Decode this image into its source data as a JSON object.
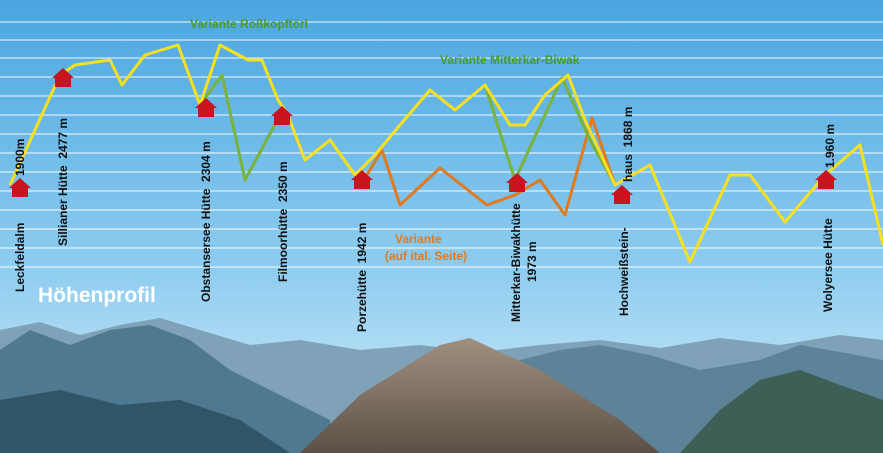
{
  "title": "Höhenprofil",
  "variants": {
    "rosskopf": "Variante Roßkopftörl",
    "mitterkar": "Variante Mitterkar-Biwak",
    "italian": [
      "Variante",
      "(auf ital. Seite)"
    ]
  },
  "huts": [
    {
      "name": "Leckfeldalm",
      "elevation": "1900m"
    },
    {
      "name": "Sillianer Hütte  2477 m"
    },
    {
      "name": "Obstansersee Hütte  2304 m"
    },
    {
      "name": "Filmoorhütte  2350 m"
    },
    {
      "name": "Porzehütte  1942 m"
    },
    {
      "name": "Mitterkar-Biwakhütte",
      "elevation": "1973 m"
    },
    {
      "name": "Hochweißstein-",
      "elevation": "haus  1868 m"
    },
    {
      "name": "Wolyersee Hütte",
      "elevation": "1.960 m"
    }
  ]
}
